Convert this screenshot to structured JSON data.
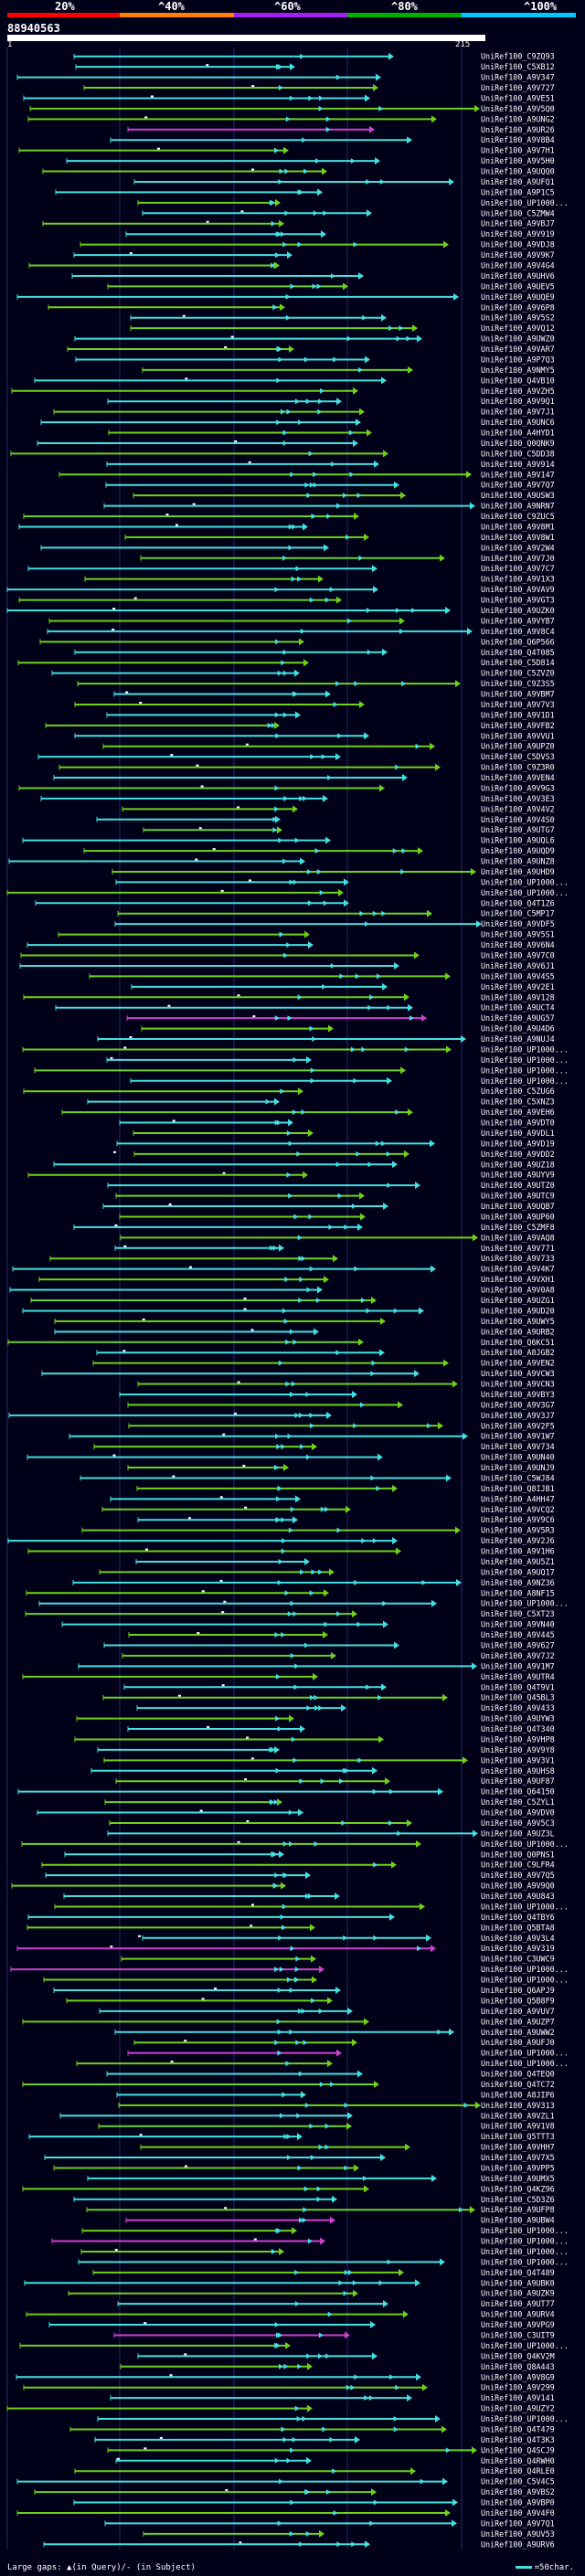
{
  "scale": {
    "labels": [
      "20%",
      "^40%",
      "^60%",
      "^80%",
      "^100%"
    ],
    "colors": [
      "#ff0000",
      "#ff8000",
      "#a020f0",
      "#00b000",
      "#00c8ff"
    ]
  },
  "query": {
    "id": "88940563",
    "start": "1",
    "end": "215"
  },
  "colors": {
    "background": "#000018",
    "cyan": "#43e0e0",
    "green": "#6fd11a",
    "dark_green": "#2a8a00",
    "magenta": "#d040d0",
    "grid": "#2a2a6e",
    "label": "#ffffff"
  },
  "hits": [
    {
      "label": "UniRef100_C9ZQ93",
      "color": "cyan"
    },
    {
      "label": "UniRef100_C5XB12",
      "color": "cyan"
    },
    {
      "label": "UniRef100_A9V347",
      "color": "cyan"
    },
    {
      "label": "UniRef100_A9V727",
      "color": "green"
    },
    {
      "label": "UniRef100_A9VE51",
      "color": "cyan"
    },
    {
      "label": "UniRef100_A9V5Q0",
      "color": "green"
    },
    {
      "label": "UniRef100_A9UNG2",
      "color": "green"
    },
    {
      "label": "UniRef100_A9UR26",
      "color": "magenta"
    },
    {
      "label": "UniRef100_A9V8B4",
      "color": "cyan"
    },
    {
      "label": "UniRef100_A9V7H1",
      "color": "green"
    },
    {
      "label": "UniRef100_A9V5H0",
      "color": "cyan"
    },
    {
      "label": "UniRef100_A9UQQ0",
      "color": "green"
    },
    {
      "label": "UniRef100_A9UFQ1",
      "color": "cyan"
    },
    {
      "label": "UniRef100_A9P1C5",
      "color": "cyan"
    },
    {
      "label": "UniRef100_UP1000...",
      "color": "green"
    },
    {
      "label": "UniRef100_C5ZMW4",
      "color": "cyan"
    },
    {
      "label": "UniRef100_A9VBJ7",
      "color": "green"
    },
    {
      "label": "UniRef100_A9V919",
      "color": "cyan"
    },
    {
      "label": "UniRef100_A9VDJ8",
      "color": "green"
    },
    {
      "label": "UniRef100_A9V9K7",
      "color": "cyan"
    },
    {
      "label": "UniRef100_A9V4G4",
      "color": "green"
    },
    {
      "label": "UniRef100_A9UHV6",
      "color": "cyan"
    },
    {
      "label": "UniRef100_A9UEV5",
      "color": "green"
    },
    {
      "label": "UniRef100_A9UQE9",
      "color": "cyan"
    },
    {
      "label": "UniRef100_A9V6P8",
      "color": "green"
    },
    {
      "label": "UniRef100_A9V5S2",
      "color": "cyan"
    },
    {
      "label": "UniRef100_A9VQ12",
      "color": "green"
    },
    {
      "label": "UniRef100_A9UWZ0",
      "color": "cyan"
    },
    {
      "label": "UniRef100_A9VAR7",
      "color": "green"
    },
    {
      "label": "UniRef100_A9P7Q3",
      "color": "cyan"
    },
    {
      "label": "UniRef100_A9NMY5",
      "color": "green"
    },
    {
      "label": "UniRef100_Q4VB10",
      "color": "cyan"
    },
    {
      "label": "UniRef100_A9VZH5",
      "color": "green"
    },
    {
      "label": "UniRef100_A9V9Q1",
      "color": "cyan"
    },
    {
      "label": "UniRef100_A9V7J1",
      "color": "green"
    },
    {
      "label": "UniRef100_A9UNC6",
      "color": "cyan"
    },
    {
      "label": "UniRef100_A4HYD1",
      "color": "green"
    },
    {
      "label": "UniRef100_Q0QNK9",
      "color": "cyan"
    },
    {
      "label": "UniRef100_C5DD38",
      "color": "green"
    },
    {
      "label": "UniRef100_A9V914",
      "color": "cyan"
    },
    {
      "label": "UniRef100_A9V147",
      "color": "green"
    },
    {
      "label": "UniRef100_A9V7Q7",
      "color": "cyan"
    },
    {
      "label": "UniRef100_A9USW3",
      "color": "green"
    },
    {
      "label": "UniRef100_A9NRN7",
      "color": "cyan"
    },
    {
      "label": "UniRef100_C9ZUC5",
      "color": "green"
    },
    {
      "label": "UniRef100_A9V8M1",
      "color": "cyan"
    },
    {
      "label": "UniRef100_A9V8W1",
      "color": "green"
    },
    {
      "label": "UniRef100_A9V2W4",
      "color": "cyan"
    },
    {
      "label": "UniRef100_A9V7J0",
      "color": "green"
    },
    {
      "label": "UniRef100_A9V7C7",
      "color": "cyan"
    },
    {
      "label": "UniRef100_A9V1X3",
      "color": "green"
    },
    {
      "label": "UniRef100_A9VAV9",
      "color": "cyan"
    },
    {
      "label": "UniRef100_A9VGT3",
      "color": "green"
    },
    {
      "label": "UniRef100_A9UZK0",
      "color": "cyan"
    },
    {
      "label": "UniRef100_A9VYB7",
      "color": "green"
    },
    {
      "label": "UniRef100_A9V8C4",
      "color": "cyan"
    },
    {
      "label": "UniRef100_Q6P566",
      "color": "green"
    },
    {
      "label": "UniRef100_Q4T085",
      "color": "cyan"
    },
    {
      "label": "UniRef100_C5D814",
      "color": "green"
    },
    {
      "label": "UniRef100_C5ZVZ0",
      "color": "cyan"
    },
    {
      "label": "UniRef100_C9Z3S5",
      "color": "green"
    },
    {
      "label": "UniRef100_A9VBM7",
      "color": "cyan"
    },
    {
      "label": "UniRef100_A9V7V3",
      "color": "green"
    },
    {
      "label": "UniRef100_A9V1D1",
      "color": "cyan"
    },
    {
      "label": "UniRef100_A9VFB2",
      "color": "green"
    },
    {
      "label": "UniRef100_A9VVU1",
      "color": "cyan"
    },
    {
      "label": "UniRef100_A9UPZ0",
      "color": "green"
    },
    {
      "label": "UniRef100_C5DVS3",
      "color": "cyan"
    },
    {
      "label": "UniRef100_C9Z3R0",
      "color": "green"
    },
    {
      "label": "UniRef100_A9VEN4",
      "color": "cyan"
    },
    {
      "label": "UniRef100_A9V9G3",
      "color": "green"
    },
    {
      "label": "UniRef100_A9V3E3",
      "color": "cyan"
    },
    {
      "label": "UniRef100_A9V4V2",
      "color": "green"
    },
    {
      "label": "UniRef100_A9V4S0",
      "color": "cyan"
    },
    {
      "label": "UniRef100_A9UTG7",
      "color": "green"
    },
    {
      "label": "UniRef100_A9UQL6",
      "color": "cyan"
    },
    {
      "label": "UniRef100_A9UQD9",
      "color": "green"
    },
    {
      "label": "UniRef100_A9UNZ8",
      "color": "cyan"
    },
    {
      "label": "UniRef100_A9UHD9",
      "color": "green"
    },
    {
      "label": "UniRef100_UP1000...",
      "color": "cyan"
    },
    {
      "label": "UniRef100_UP1000...",
      "color": "green"
    },
    {
      "label": "UniRef100_Q4T1Z6",
      "color": "cyan"
    },
    {
      "label": "UniRef100_C5MP17",
      "color": "green"
    },
    {
      "label": "UniRef100_A9VDF5",
      "color": "cyan"
    },
    {
      "label": "UniRef100_A9V5S1",
      "color": "green"
    },
    {
      "label": "UniRef100_A9V6N4",
      "color": "cyan"
    },
    {
      "label": "UniRef100_A9V7C0",
      "color": "green"
    },
    {
      "label": "UniRef100_A9V6J1",
      "color": "cyan"
    },
    {
      "label": "UniRef100_A9V4S5",
      "color": "green"
    },
    {
      "label": "UniRef100_A9V2E1",
      "color": "cyan"
    },
    {
      "label": "UniRef100_A9V128",
      "color": "green"
    },
    {
      "label": "UniRef100_A9UCT4",
      "color": "cyan"
    },
    {
      "label": "UniRef100_A9UG57",
      "color": "magenta"
    },
    {
      "label": "UniRef100_A9U4D6",
      "color": "green"
    },
    {
      "label": "UniRef100_A9NUJ4",
      "color": "cyan"
    },
    {
      "label": "UniRef100_UP1000...",
      "color": "green"
    },
    {
      "label": "UniRef100_UP1000...",
      "color": "cyan"
    },
    {
      "label": "UniRef100_UP1000...",
      "color": "green"
    },
    {
      "label": "UniRef100_UP1000...",
      "color": "cyan"
    },
    {
      "label": "UniRef100_C5ZUG6",
      "color": "green"
    },
    {
      "label": "UniRef100_C5XNZ3",
      "color": "cyan"
    },
    {
      "label": "UniRef100_A9VEH6",
      "color": "green"
    },
    {
      "label": "UniRef100_A9VDT0",
      "color": "cyan"
    },
    {
      "label": "UniRef100_A9VDL1",
      "color": "green"
    },
    {
      "label": "UniRef100_A9VD19",
      "color": "cyan"
    },
    {
      "label": "UniRef100_A9VDD2",
      "color": "green"
    },
    {
      "label": "UniRef100_A9UZ18",
      "color": "cyan"
    },
    {
      "label": "UniRef100_A9UYV9",
      "color": "green"
    },
    {
      "label": "UniRef100_A9UTZ0",
      "color": "cyan"
    },
    {
      "label": "UniRef100_A9UTC9",
      "color": "green"
    },
    {
      "label": "UniRef100_A9UQB7",
      "color": "cyan"
    },
    {
      "label": "UniRef100_A9UP60",
      "color": "green"
    },
    {
      "label": "UniRef100_C5ZMF8",
      "color": "cyan"
    },
    {
      "label": "UniRef100_A9VAQ8",
      "color": "green"
    },
    {
      "label": "UniRef100_A9V771",
      "color": "cyan"
    },
    {
      "label": "UniRef100_A9V733",
      "color": "green"
    },
    {
      "label": "UniRef100_A9V4K7",
      "color": "cyan"
    },
    {
      "label": "UniRef100_A9VXH1",
      "color": "green"
    },
    {
      "label": "UniRef100_A9V0A8",
      "color": "cyan"
    },
    {
      "label": "UniRef100_A9UZG1",
      "color": "green"
    },
    {
      "label": "UniRef100_A9UD20",
      "color": "cyan"
    },
    {
      "label": "UniRef100_A9UWY5",
      "color": "green"
    },
    {
      "label": "UniRef100_A9URB2",
      "color": "cyan"
    },
    {
      "label": "UniRef100_Q6KC51",
      "color": "green"
    },
    {
      "label": "UniRef100_A8JGB2",
      "color": "cyan"
    },
    {
      "label": "UniRef100_A9VEN2",
      "color": "green"
    },
    {
      "label": "UniRef100_A9VCW3",
      "color": "cyan"
    },
    {
      "label": "UniRef100_A9VCN3",
      "color": "green"
    },
    {
      "label": "UniRef100_A9VBY3",
      "color": "cyan"
    },
    {
      "label": "UniRef100_A9V3G7",
      "color": "green"
    },
    {
      "label": "UniRef100_A9V3J7",
      "color": "cyan"
    },
    {
      "label": "UniRef100_A9V2F5",
      "color": "green"
    },
    {
      "label": "UniRef100_A9V1W7",
      "color": "cyan"
    },
    {
      "label": "UniRef100_A9V734",
      "color": "green"
    },
    {
      "label": "UniRef100_A9UN40",
      "color": "cyan"
    },
    {
      "label": "UniRef100_A9UNJ9",
      "color": "green"
    },
    {
      "label": "UniRef100_C5WJ84",
      "color": "cyan"
    },
    {
      "label": "UniRef100_Q8IJB1",
      "color": "green"
    },
    {
      "label": "UniRef100_A4HH47",
      "color": "cyan"
    },
    {
      "label": "UniRef100_A9VCQ2",
      "color": "green"
    },
    {
      "label": "UniRef100_A9V9C6",
      "color": "cyan"
    },
    {
      "label": "UniRef100_A9V5R3",
      "color": "green"
    },
    {
      "label": "UniRef100_A9V2J6",
      "color": "cyan"
    },
    {
      "label": "UniRef100_A9V1H6",
      "color": "green"
    },
    {
      "label": "UniRef100_A9U5Z1",
      "color": "cyan"
    },
    {
      "label": "UniRef100_A9UQ17",
      "color": "green"
    },
    {
      "label": "UniRef100_A9NZ36",
      "color": "cyan"
    },
    {
      "label": "UniRef100_A8NF15",
      "color": "green"
    },
    {
      "label": "UniRef100_UP1000...",
      "color": "cyan"
    },
    {
      "label": "UniRef100_C5XT23",
      "color": "green"
    },
    {
      "label": "UniRef100_A9VN40",
      "color": "cyan"
    },
    {
      "label": "UniRef100_A9V445",
      "color": "green"
    },
    {
      "label": "UniRef100_A9V627",
      "color": "cyan"
    },
    {
      "label": "UniRef100_A9V7J2",
      "color": "green"
    },
    {
      "label": "UniRef100_A9V1M7",
      "color": "cyan"
    },
    {
      "label": "UniRef100_A9UTR4",
      "color": "green"
    },
    {
      "label": "UniRef100_Q4T9V1",
      "color": "cyan"
    },
    {
      "label": "UniRef100_Q45BL3",
      "color": "green"
    },
    {
      "label": "UniRef100_A9V433",
      "color": "cyan"
    },
    {
      "label": "UniRef100_A9UYW3",
      "color": "green"
    },
    {
      "label": "UniRef100_Q4T340",
      "color": "cyan"
    },
    {
      "label": "UniRef100_A9VHP8",
      "color": "green"
    },
    {
      "label": "UniRef100_A9V9Y8",
      "color": "cyan"
    },
    {
      "label": "UniRef100_A9V3V1",
      "color": "green"
    },
    {
      "label": "UniRef100_A9UHS8",
      "color": "cyan"
    },
    {
      "label": "UniRef100_A9UF87",
      "color": "green"
    },
    {
      "label": "UniRef100_Q64150",
      "color": "cyan"
    },
    {
      "label": "UniRef100_C5ZYL1",
      "color": "green"
    },
    {
      "label": "UniRef100_A9VDV0",
      "color": "cyan"
    },
    {
      "label": "UniRef100_A9V5C3",
      "color": "green"
    },
    {
      "label": "UniRef100_A9UZ3L",
      "color": "cyan"
    },
    {
      "label": "UniRef100_UP1000...",
      "color": "green"
    },
    {
      "label": "UniRef100_Q0PNS1",
      "color": "cyan"
    },
    {
      "label": "UniRef100_C9LFR4",
      "color": "green"
    },
    {
      "label": "UniRef100_A9V7Q5",
      "color": "cyan"
    },
    {
      "label": "UniRef100_A9V9Q0",
      "color": "green"
    },
    {
      "label": "UniRef100_A9U843",
      "color": "cyan"
    },
    {
      "label": "UniRef100_UP1000...",
      "color": "green"
    },
    {
      "label": "UniRef100_Q4TBY6",
      "color": "cyan"
    },
    {
      "label": "UniRef100_Q5BTA8",
      "color": "green"
    },
    {
      "label": "UniRef100_A9V3L4",
      "color": "cyan"
    },
    {
      "label": "UniRef100_A9V319",
      "color": "magenta"
    },
    {
      "label": "UniRef100_C3UWC9",
      "color": "green"
    },
    {
      "label": "UniRef100_UP1000...",
      "color": "magenta"
    },
    {
      "label": "UniRef100_UP1000...",
      "color": "green"
    },
    {
      "label": "UniRef100_Q6APJ9",
      "color": "cyan"
    },
    {
      "label": "UniRef100_Q5B8F9",
      "color": "green"
    },
    {
      "label": "UniRef100_A9VUV7",
      "color": "cyan"
    },
    {
      "label": "UniRef100_A9UZP7",
      "color": "green"
    },
    {
      "label": "UniRef100_A9UWW2",
      "color": "cyan"
    },
    {
      "label": "UniRef100_A9UFJ0",
      "color": "green"
    },
    {
      "label": "UniRef100_UP1000...",
      "color": "magenta"
    },
    {
      "label": "UniRef100_UP1000...",
      "color": "green"
    },
    {
      "label": "UniRef100_Q4TEQ0",
      "color": "cyan"
    },
    {
      "label": "UniRef100_Q4TC72",
      "color": "green"
    },
    {
      "label": "UniRef100_A8JIP6",
      "color": "cyan"
    },
    {
      "label": "UniRef100_A9V313",
      "color": "green"
    },
    {
      "label": "UniRef100_A9VZL1",
      "color": "cyan"
    },
    {
      "label": "UniRef100_A9V1V8",
      "color": "green"
    },
    {
      "label": "UniRef100_Q5TTT3",
      "color": "cyan"
    },
    {
      "label": "UniRef100_A9VHH7",
      "color": "green"
    },
    {
      "label": "UniRef100_A9V7X5",
      "color": "cyan"
    },
    {
      "label": "UniRef100_A9VPP5",
      "color": "green"
    },
    {
      "label": "UniRef100_A9UMX5",
      "color": "cyan"
    },
    {
      "label": "UniRef100_Q4KZ96",
      "color": "green"
    },
    {
      "label": "UniRef100_C5D3Z6",
      "color": "cyan"
    },
    {
      "label": "UniRef100_A9UFP8",
      "color": "green"
    },
    {
      "label": "UniRef100_A9UBW4",
      "color": "magenta"
    },
    {
      "label": "UniRef100_UP1000...",
      "color": "green"
    },
    {
      "label": "UniRef100_UP1000...",
      "color": "magenta"
    },
    {
      "label": "UniRef100_UP1000...",
      "color": "green"
    },
    {
      "label": "UniRef100_UP1000...",
      "color": "cyan"
    },
    {
      "label": "UniRef100_Q4T489",
      "color": "green"
    },
    {
      "label": "UniRef100_A9UBK0",
      "color": "cyan"
    },
    {
      "label": "UniRef100_A9UZK9",
      "color": "green"
    },
    {
      "label": "UniRef100_A9UT77",
      "color": "cyan"
    },
    {
      "label": "UniRef100_A9URV4",
      "color": "green"
    },
    {
      "label": "UniRef100_A9VPG9",
      "color": "cyan"
    },
    {
      "label": "UniRef100_C3UIT9",
      "color": "magenta"
    },
    {
      "label": "UniRef100_UP1000...",
      "color": "green"
    },
    {
      "label": "UniRef100_Q4KV2M",
      "color": "cyan"
    },
    {
      "label": "UniRef100_Q8A443",
      "color": "green"
    },
    {
      "label": "UniRef100_A9V8G9",
      "color": "cyan"
    },
    {
      "label": "UniRef100_A9V299",
      "color": "green"
    },
    {
      "label": "UniRef100_A9V141",
      "color": "cyan"
    },
    {
      "label": "UniRef100_A9UZY2",
      "color": "green"
    },
    {
      "label": "UniRef100_UP1000...",
      "color": "cyan"
    },
    {
      "label": "UniRef100_Q4T479",
      "color": "green"
    },
    {
      "label": "UniRef100_Q4T3K3",
      "color": "cyan"
    },
    {
      "label": "UniRef100_Q4SCJ9",
      "color": "green"
    },
    {
      "label": "UniRef100_Q4RWH0",
      "color": "cyan"
    },
    {
      "label": "UniRef100_Q4RLE0",
      "color": "green"
    },
    {
      "label": "UniRef100_C5V4C5",
      "color": "cyan"
    },
    {
      "label": "UniRef100_A9VBS2",
      "color": "green"
    },
    {
      "label": "UniRef100_A9VBP0",
      "color": "cyan"
    },
    {
      "label": "UniRef100_A9V4F0",
      "color": "green"
    },
    {
      "label": "UniRef100_A9V7Q1",
      "color": "cyan"
    },
    {
      "label": "UniRef100_A9UV53",
      "color": "green"
    },
    {
      "label": "UniRef100_A9URV6",
      "color": "cyan"
    }
  ],
  "legend": {
    "text": "Large gaps: ▲(in Query)/- (in Subject)",
    "scale_text": "=50char."
  }
}
